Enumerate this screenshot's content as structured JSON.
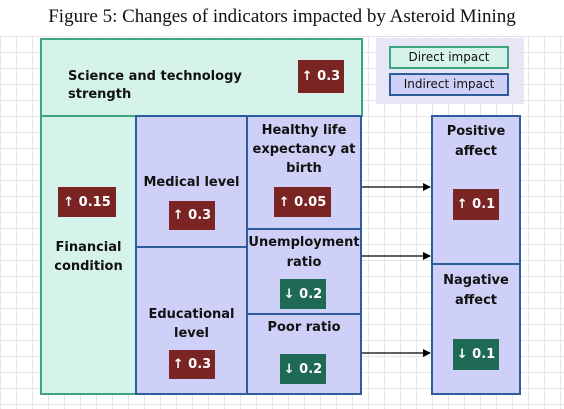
{
  "title": "Figure 5: Changes of indicators impacted by Asteroid Mining",
  "legend": {
    "direct": "Direct impact",
    "indirect": "Indirect impact"
  },
  "colors": {
    "direct_fill": "#d6f3eb",
    "indirect_fill": "#cfd0f7",
    "increase_badge": "#7a2524",
    "decrease_badge": "#1f6a54"
  },
  "nodes": {
    "science": {
      "label": "Science and technology strength",
      "value": "↑ 0.3"
    },
    "financial": {
      "label_line1": "Financial",
      "label_line2": "condition",
      "value": "↑ 0.15"
    },
    "medical": {
      "label": "Medical level",
      "value": "↑ 0.3"
    },
    "educational": {
      "label_line1": "Educational",
      "label_line2": "level",
      "value": "↑ 0.3"
    },
    "healthy": {
      "label_line1": "Healthy life",
      "label_line2": "expectancy at",
      "label_line3": "birth",
      "value": "↑ 0.05"
    },
    "unemployment": {
      "label_line1": "Unemployment",
      "label_line2": "ratio",
      "value": "↓ 0.2"
    },
    "poor": {
      "label": "Poor ratio",
      "value": "↓ 0.2"
    },
    "positive": {
      "label_line1": "Positive",
      "label_line2": "affect",
      "value": "↑ 0.1"
    },
    "negative": {
      "label_line1": "Nagative",
      "label_line2": "affect",
      "value": "↓ 0.1"
    }
  }
}
